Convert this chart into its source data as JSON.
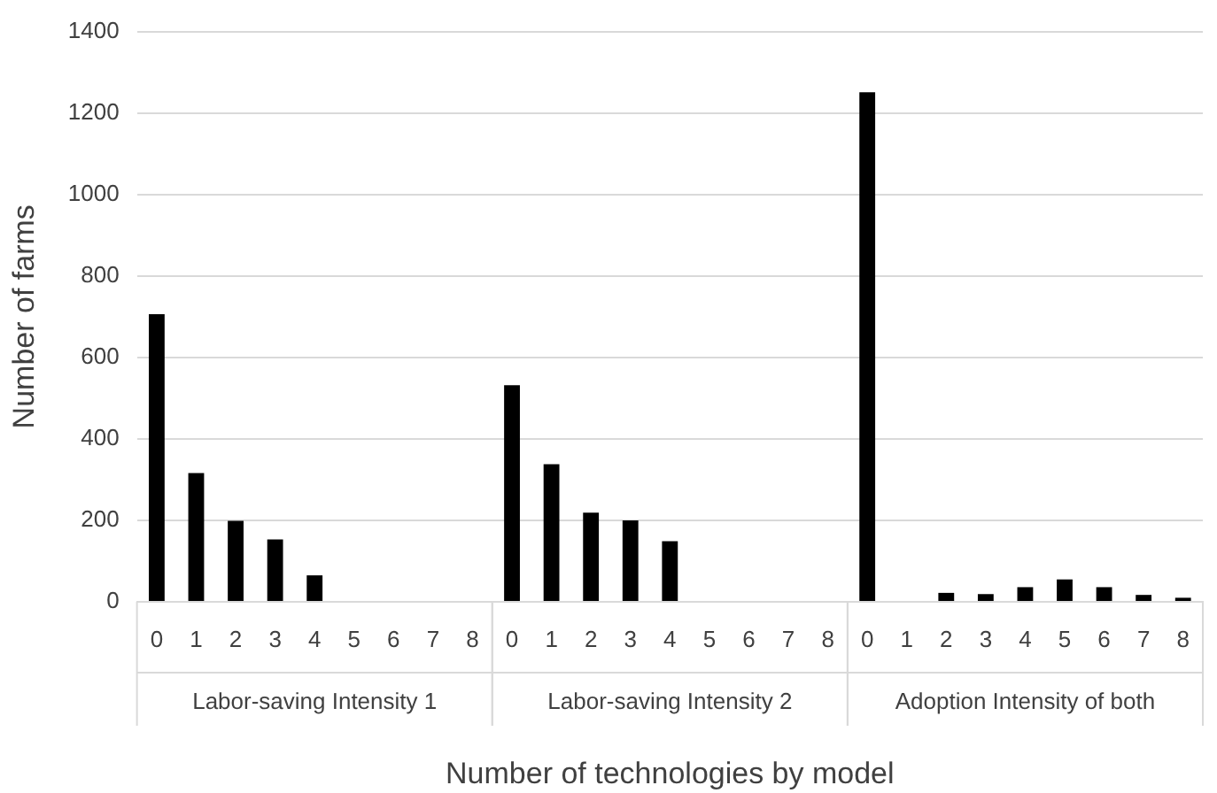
{
  "chart_data": {
    "type": "bar",
    "xlabel": "Number of technologies by model",
    "ylabel": "Number of farms",
    "categories": [
      "0",
      "1",
      "2",
      "3",
      "4",
      "5",
      "6",
      "7",
      "8",
      "0",
      "1",
      "2",
      "3",
      "4",
      "5",
      "6",
      "7",
      "8",
      "0",
      "1",
      "2",
      "3",
      "4",
      "5",
      "6",
      "7",
      "8"
    ],
    "values": [
      706,
      316,
      199,
      153,
      65,
      0,
      0,
      0,
      0,
      532,
      338,
      219,
      200,
      149,
      0,
      0,
      0,
      0,
      1251,
      0,
      22,
      19,
      36,
      55,
      36,
      17,
      10
    ],
    "color": "#000000",
    "annotations": [
      "Labor-saving Intensity 1",
      "Labor-saving Intensity 2",
      "Adoption Intensity of both"
    ],
    "ylim": [
      0,
      1400
    ],
    "yticks": [
      0,
      200,
      400,
      600,
      800,
      1000,
      1200,
      1400
    ],
    "grid": "y",
    "legend": false
  }
}
